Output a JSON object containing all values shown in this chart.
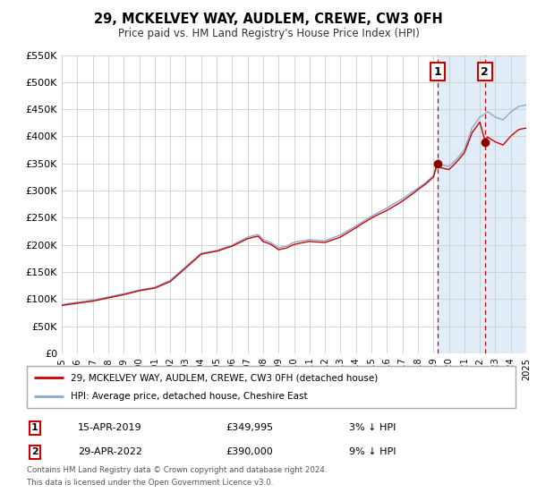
{
  "title": "29, MCKELVEY WAY, AUDLEM, CREWE, CW3 0FH",
  "subtitle": "Price paid vs. HM Land Registry's House Price Index (HPI)",
  "legend_line1": "29, MCKELVEY WAY, AUDLEM, CREWE, CW3 0FH (detached house)",
  "legend_line2": "HPI: Average price, detached house, Cheshire East",
  "marker1_date": "15-APR-2019",
  "marker1_price": "£349,995",
  "marker1_pct": "3% ↓ HPI",
  "marker2_date": "29-APR-2022",
  "marker2_price": "£390,000",
  "marker2_pct": "9% ↓ HPI",
  "footer1": "Contains HM Land Registry data © Crown copyright and database right 2024.",
  "footer2": "This data is licensed under the Open Government Licence v3.0.",
  "xlim": [
    1995,
    2025
  ],
  "ylim": [
    0,
    550000
  ],
  "yticks": [
    0,
    50000,
    100000,
    150000,
    200000,
    250000,
    300000,
    350000,
    400000,
    450000,
    500000,
    550000
  ],
  "ytick_labels": [
    "£0",
    "£50K",
    "£100K",
    "£150K",
    "£200K",
    "£250K",
    "£300K",
    "£350K",
    "£400K",
    "£450K",
    "£500K",
    "£550K"
  ],
  "xticks": [
    1995,
    1996,
    1997,
    1998,
    1999,
    2000,
    2001,
    2002,
    2003,
    2004,
    2005,
    2006,
    2007,
    2008,
    2009,
    2010,
    2011,
    2012,
    2013,
    2014,
    2015,
    2016,
    2017,
    2018,
    2019,
    2020,
    2021,
    2022,
    2023,
    2024,
    2025
  ],
  "red_color": "#cc0000",
  "blue_color": "#88aacc",
  "background_shade_color": "#e0ecf8",
  "marker1_x": 2019.29,
  "marker1_y": 349995,
  "marker2_x": 2022.33,
  "marker2_y": 390000,
  "hpi_seed": 42,
  "red_seed": 99
}
